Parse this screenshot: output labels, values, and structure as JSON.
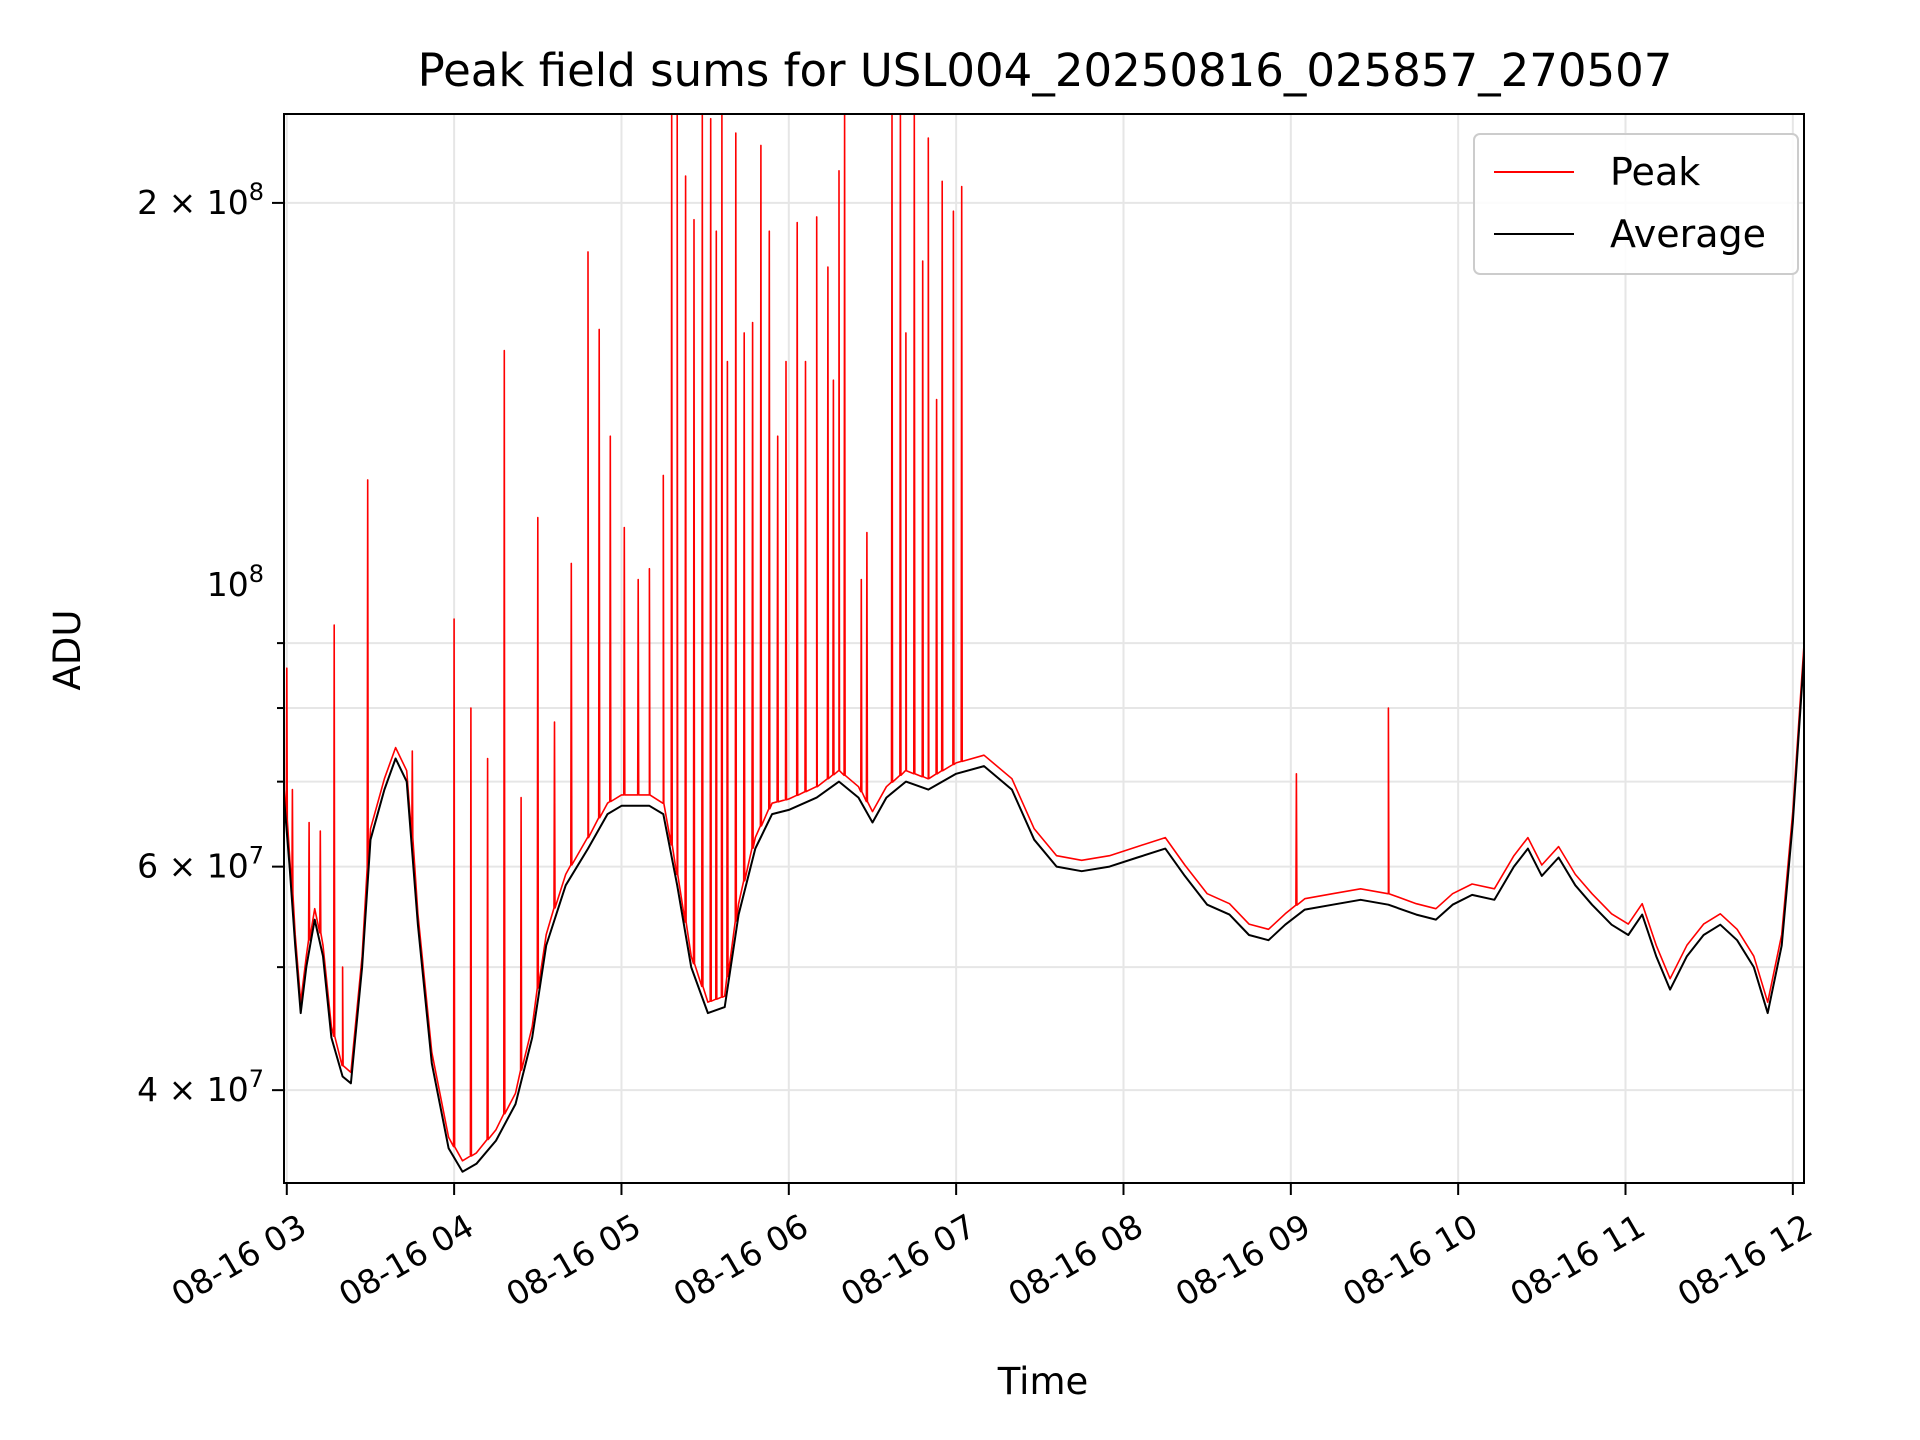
{
  "chart_data": {
    "type": "line",
    "title": "Peak field sums for USL004_20250816_025857_270507",
    "xlabel": "Time",
    "ylabel": "ADU",
    "x_start": "2025-08-16T02:58:57",
    "x_unit": "hours",
    "xlim": [
      "08-16 02:59",
      "08-16 12:04"
    ],
    "ylim": [
      33800000,
      235000000
    ],
    "yscale": "log",
    "grid": true,
    "legend_position": "upper right",
    "x_ticks": [
      "08-16 03",
      "08-16 04",
      "08-16 05",
      "08-16 06",
      "08-16 07",
      "08-16 08",
      "08-16 09",
      "08-16 10",
      "08-16 11",
      "08-16 12"
    ],
    "y_ticks": [
      {
        "value": 40000000,
        "mantissa": "4",
        "exponent": "7"
      },
      {
        "value": 60000000,
        "mantissa": "6",
        "exponent": "7"
      },
      {
        "value": 100000000,
        "mantissa": "",
        "exponent": "8"
      },
      {
        "value": 200000000,
        "mantissa": "2",
        "exponent": "8"
      }
    ],
    "series": [
      {
        "name": "Average",
        "color": "#000000",
        "points": [
          [
            "02:59",
            68000000.0
          ],
          [
            "03:01",
            60000000.0
          ],
          [
            "03:03",
            52000000.0
          ],
          [
            "03:05",
            46000000.0
          ],
          [
            "03:07",
            50000000.0
          ],
          [
            "03:10",
            54500000.0
          ],
          [
            "03:13",
            51000000.0
          ],
          [
            "03:16",
            44000000.0
          ],
          [
            "03:20",
            41000000.0
          ],
          [
            "03:23",
            40500000.0
          ],
          [
            "03:27",
            50000000.0
          ],
          [
            "03:30",
            63000000.0
          ],
          [
            "03:35",
            69000000.0
          ],
          [
            "03:39",
            73000000.0
          ],
          [
            "03:43",
            70000000.0
          ],
          [
            "03:47",
            54000000.0
          ],
          [
            "03:52",
            42000000.0
          ],
          [
            "03:58",
            36000000.0
          ],
          [
            "04:03",
            34500000.0
          ],
          [
            "04:08",
            35000000.0
          ],
          [
            "04:15",
            36500000.0
          ],
          [
            "04:22",
            39000000.0
          ],
          [
            "04:28",
            44000000.0
          ],
          [
            "04:33",
            52000000.0
          ],
          [
            "04:40",
            58000000.0
          ],
          [
            "04:48",
            62000000.0
          ],
          [
            "04:55",
            66000000.0
          ],
          [
            "05:00",
            67000000.0
          ],
          [
            "05:10",
            67000000.0
          ],
          [
            "05:15",
            66000000.0
          ],
          [
            "05:20",
            58000000.0
          ],
          [
            "05:25",
            50000000.0
          ],
          [
            "05:31",
            46000000.0
          ],
          [
            "05:37",
            46500000.0
          ],
          [
            "05:42",
            55000000.0
          ],
          [
            "05:48",
            62000000.0
          ],
          [
            "05:54",
            66000000.0
          ],
          [
            "06:00",
            66500000.0
          ],
          [
            "06:10",
            68000000.0
          ],
          [
            "06:18",
            70000000.0
          ],
          [
            "06:25",
            68000000.0
          ],
          [
            "06:30",
            65000000.0
          ],
          [
            "06:35",
            68000000.0
          ],
          [
            "06:42",
            70000000.0
          ],
          [
            "06:50",
            69000000.0
          ],
          [
            "07:00",
            71000000.0
          ],
          [
            "07:10",
            72000000.0
          ],
          [
            "07:20",
            69000000.0
          ],
          [
            "07:28",
            63000000.0
          ],
          [
            "07:36",
            60000000.0
          ],
          [
            "07:45",
            59500000.0
          ],
          [
            "07:55",
            60000000.0
          ],
          [
            "08:05",
            61000000.0
          ],
          [
            "08:15",
            62000000.0
          ],
          [
            "08:22",
            59000000.0
          ],
          [
            "08:30",
            56000000.0
          ],
          [
            "08:38",
            55000000.0
          ],
          [
            "08:45",
            53000000.0
          ],
          [
            "08:52",
            52500000.0
          ],
          [
            "08:58",
            54000000.0
          ],
          [
            "09:05",
            55500000.0
          ],
          [
            "09:15",
            56000000.0
          ],
          [
            "09:25",
            56500000.0
          ],
          [
            "09:35",
            56000000.0
          ],
          [
            "09:45",
            55000000.0
          ],
          [
            "09:52",
            54500000.0
          ],
          [
            "09:58",
            56000000.0
          ],
          [
            "10:05",
            57000000.0
          ],
          [
            "10:13",
            56500000.0
          ],
          [
            "10:20",
            60000000.0
          ],
          [
            "10:25",
            62000000.0
          ],
          [
            "10:30",
            59000000.0
          ],
          [
            "10:36",
            61000000.0
          ],
          [
            "10:42",
            58000000.0
          ],
          [
            "10:48",
            56000000.0
          ],
          [
            "10:55",
            54000000.0
          ],
          [
            "11:01",
            53000000.0
          ],
          [
            "11:06",
            55000000.0
          ],
          [
            "11:11",
            51000000.0
          ],
          [
            "11:16",
            48000000.0
          ],
          [
            "11:22",
            51000000.0
          ],
          [
            "11:28",
            53000000.0
          ],
          [
            "11:34",
            54000000.0
          ],
          [
            "11:40",
            52500000.0
          ],
          [
            "11:46",
            50000000.0
          ],
          [
            "11:51",
            46000000.0
          ],
          [
            "11:56",
            52000000.0
          ],
          [
            "12:00",
            65000000.0
          ],
          [
            "12:04",
            88000000.0
          ]
        ]
      },
      {
        "name": "Peak",
        "color": "#ff0000",
        "spikes": [
          [
            "03:00",
            86000000.0
          ],
          [
            "03:02",
            69000000.0
          ],
          [
            "03:08",
            65000000.0
          ],
          [
            "03:12",
            64000000.0
          ],
          [
            "03:17",
            93000000.0
          ],
          [
            "03:20",
            50000000.0
          ],
          [
            "03:29",
            121000000.0
          ],
          [
            "03:45",
            74000000.0
          ],
          [
            "04:00",
            94000000.0
          ],
          [
            "04:06",
            80000000.0
          ],
          [
            "04:12",
            73000000.0
          ],
          [
            "04:18",
            153000000.0
          ],
          [
            "04:24",
            68000000.0
          ],
          [
            "04:30",
            113000000.0
          ],
          [
            "04:36",
            78000000.0
          ],
          [
            "04:42",
            104000000.0
          ],
          [
            "04:48",
            183000000.0
          ],
          [
            "04:52",
            159000000.0
          ],
          [
            "04:56",
            131000000.0
          ],
          [
            "05:01",
            111000000.0
          ],
          [
            "05:06",
            101000000.0
          ],
          [
            "05:10",
            103000000.0
          ],
          [
            "05:15",
            122000000.0
          ],
          [
            "05:18",
            235000000.0
          ],
          [
            "05:20",
            235000000.0
          ],
          [
            "05:23",
            210000000.0
          ],
          [
            "05:26",
            194000000.0
          ],
          [
            "05:29",
            235000000.0
          ],
          [
            "05:32",
            233000000.0
          ],
          [
            "05:34",
            190000000.0
          ],
          [
            "05:36",
            235000000.0
          ],
          [
            "05:38",
            150000000.0
          ],
          [
            "05:41",
            227000000.0
          ],
          [
            "05:44",
            158000000.0
          ],
          [
            "05:47",
            161000000.0
          ],
          [
            "05:50",
            222000000.0
          ],
          [
            "05:53",
            190000000.0
          ],
          [
            "05:56",
            131000000.0
          ],
          [
            "05:59",
            150000000.0
          ],
          [
            "06:03",
            193000000.0
          ],
          [
            "06:06",
            150000000.0
          ],
          [
            "06:10",
            195000000.0
          ],
          [
            "06:14",
            178000000.0
          ],
          [
            "06:16",
            145000000.0
          ],
          [
            "06:18",
            212000000.0
          ],
          [
            "06:20",
            235000000.0
          ],
          [
            "06:26",
            101000000.0
          ],
          [
            "06:28",
            110000000.0
          ],
          [
            "06:37",
            235000000.0
          ],
          [
            "06:40",
            235000000.0
          ],
          [
            "06:42",
            158000000.0
          ],
          [
            "06:45",
            235000000.0
          ],
          [
            "06:48",
            180000000.0
          ],
          [
            "06:50",
            225000000.0
          ],
          [
            "06:53",
            140000000.0
          ],
          [
            "06:55",
            208000000.0
          ],
          [
            "06:59",
            197000000.0
          ],
          [
            "07:02",
            206000000.0
          ],
          [
            "09:02",
            71000000.0
          ],
          [
            "09:35",
            80000000.0
          ]
        ]
      }
    ]
  }
}
